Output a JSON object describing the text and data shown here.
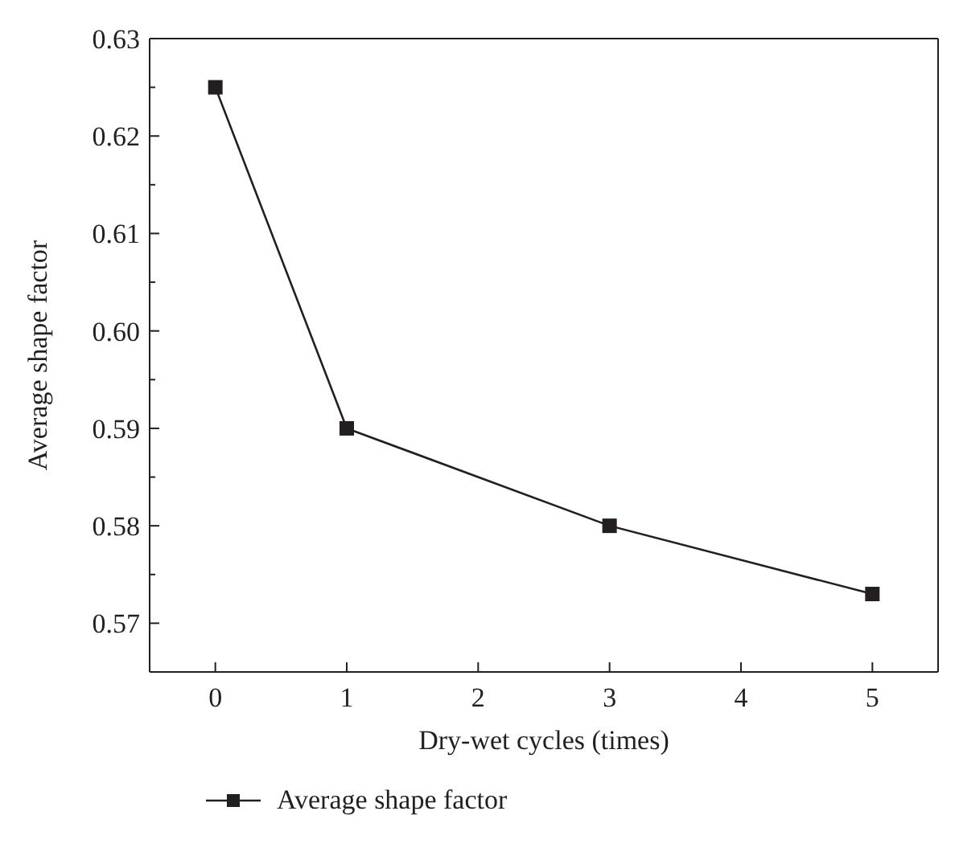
{
  "chart_data": {
    "type": "line",
    "xlabel": "Dry-wet cycles (times)",
    "ylabel": "Average shape factor",
    "x": [
      0,
      1,
      3,
      5
    ],
    "series": [
      {
        "name": "Average shape factor",
        "color": "#231f20",
        "values": [
          0.625,
          0.59,
          0.58,
          0.573
        ]
      }
    ],
    "xlim": [
      -0.5,
      5.5
    ],
    "xticks": [
      0,
      1,
      2,
      3,
      4,
      5
    ],
    "ylim": [
      0.565,
      0.63
    ],
    "yticks": [
      0.57,
      {
        "value": 0.575,
        "label": null
      },
      0.58,
      {
        "value": 0.585,
        "label": null
      },
      0.59,
      {
        "value": 0.595,
        "label": null
      },
      "0.60",
      {
        "value": 0.605,
        "label": null
      },
      0.61,
      {
        "value": 0.615,
        "label": null
      },
      0.62,
      {
        "value": 0.625,
        "label": null
      },
      0.63
    ],
    "marker": "square",
    "line_style": "solid",
    "legend": "bottom left"
  }
}
